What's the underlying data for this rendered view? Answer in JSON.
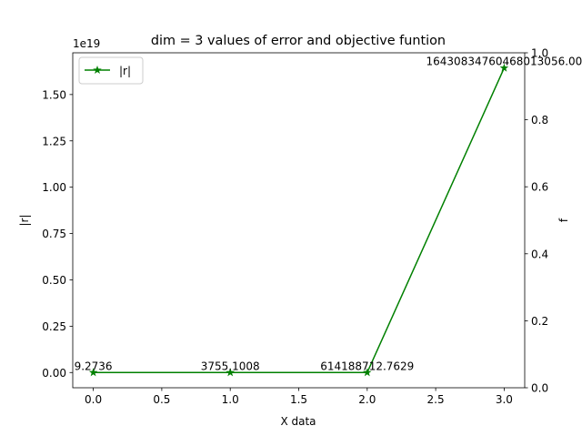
{
  "chart_data": {
    "type": "line",
    "title": "dim = 3 values of error and objective funtion",
    "xlabel": "X data",
    "ylabel": "|r|",
    "y2label": "f",
    "offset_text": "1e19",
    "x": [
      0,
      1,
      2,
      3
    ],
    "series": [
      {
        "name": "|r|",
        "color": "#008000",
        "marker": "star",
        "values": [
          9.2736,
          3755.1008,
          614188712.7629,
          1.6430834760468013e+19
        ]
      }
    ],
    "point_labels": [
      "9.2736",
      "3755.1008",
      "614188712.7629",
      "16430834760468013056.00"
    ],
    "xlim": [
      -0.15,
      3.15
    ],
    "ylim": [
      -8.21542e+17,
      1.72519e+19
    ],
    "y2lim": [
      0,
      1
    ],
    "x_ticks": [
      0,
      0.5,
      1,
      1.5,
      2,
      2.5,
      3
    ],
    "x_tick_labels": [
      "0.0",
      "0.5",
      "1.0",
      "1.5",
      "2.0",
      "2.5",
      "3.0"
    ],
    "y_ticks": [
      0,
      2.5e+18,
      5e+18,
      7.5e+18,
      1e+19,
      1.25e+19,
      1.5e+19
    ],
    "y_tick_labels": [
      "0.00",
      "0.25",
      "0.50",
      "0.75",
      "1.00",
      "1.25",
      "1.50"
    ],
    "y2_ticks": [
      0,
      0.2,
      0.4,
      0.6,
      0.8,
      1.0
    ],
    "y2_tick_labels": [
      "0.0",
      "0.2",
      "0.4",
      "0.6",
      "0.8",
      "1.0"
    ],
    "legend_location": "upper left",
    "grid": false
  }
}
